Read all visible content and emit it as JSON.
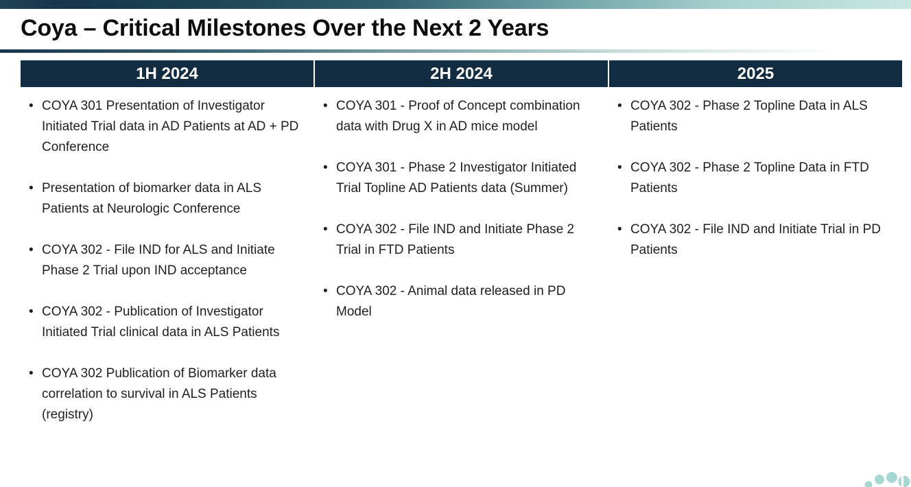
{
  "slide": {
    "title": "Coya – Critical Milestones Over the Next 2 Years",
    "columns": [
      {
        "header": "1H 2024",
        "bullets": [
          "COYA 301 Presentation of Investigator Initiated Trial data in AD Patients at AD + PD Conference",
          "Presentation of biomarker data in ALS Patients at Neurologic Conference",
          "COYA 302 - File IND for ALS and Initiate Phase 2 Trial upon IND acceptance",
          "COYA 302 - Publication of Investigator Initiated Trial clinical data in ALS Patients",
          "COYA 302 Publication of Biomarker data correlation to survival in ALS Patients (registry)"
        ]
      },
      {
        "header": "2H 2024",
        "bullets": [
          "COYA 301 - Proof of Concept combination data with Drug X in AD mice model",
          "COYA 301 - Phase 2 Investigator Initiated Trial Topline AD Patients data (Summer)",
          "COYA 302 - File IND and Initiate Phase 2 Trial in FTD Patients",
          "COYA 302 - Animal data released in PD Model"
        ]
      },
      {
        "header": "2025",
        "bullets": [
          "COYA 302 - Phase 2 Topline Data in ALS Patients",
          "COYA 302 - Phase 2 Topline Data in FTD Patients",
          "COYA 302 - File IND and Initiate Trial in PD Patients"
        ]
      }
    ],
    "colors": {
      "header_bg": "#122c42",
      "top_bar_dark": "#16364b",
      "top_bar_light": "#c8e7e1",
      "accent_teal_light": "#a7d7d3",
      "body_text": "#1f1f1f"
    }
  }
}
